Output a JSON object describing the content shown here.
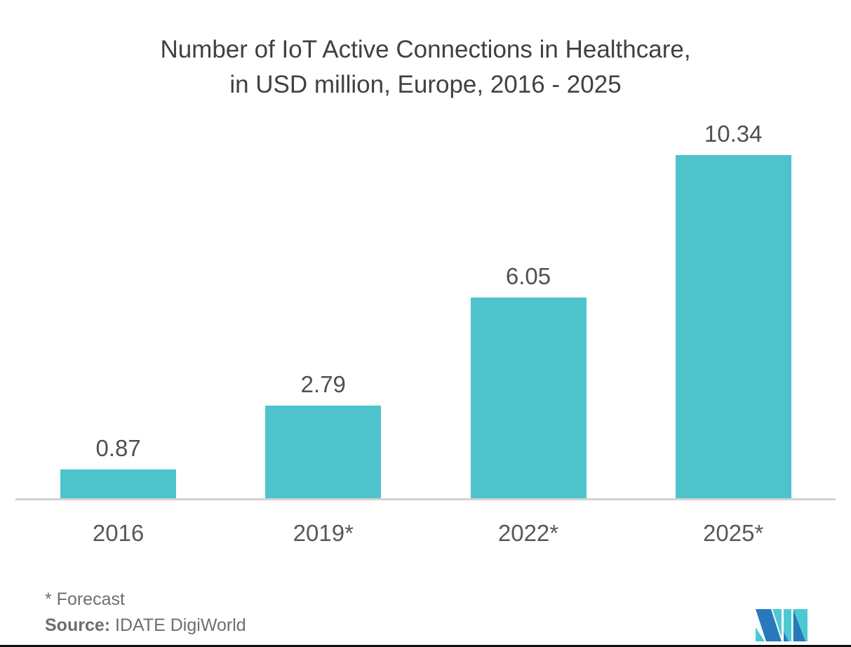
{
  "title": {
    "line1": "Number of IoT Active Connections in Healthcare,",
    "line2": "in USD million, Europe, 2016 - 2025"
  },
  "chart_data": {
    "type": "bar",
    "title": "Number of IoT Active Connections in Healthcare, in USD million, Europe, 2016 - 2025",
    "categories": [
      "2016",
      "2019*",
      "2022*",
      "2025*"
    ],
    "values": [
      0.87,
      2.79,
      6.05,
      10.34
    ],
    "value_labels": [
      "0.87",
      "2.79",
      "6.05",
      "10.34"
    ],
    "xlabel": "",
    "ylabel": "",
    "ylim": [
      0,
      10.9
    ],
    "grid": false,
    "legend": "none",
    "bar_color": "#4ec3cb",
    "axis_line_color": "#d1d3d4",
    "label_color": "#4f5052"
  },
  "footnotes": {
    "forecast": "* Forecast",
    "source_label": "Source:",
    "source_value": " IDATE DigiWorld"
  },
  "logo": {
    "name": "mordor-intelligence-logo",
    "blue": "#2879bc",
    "teal": "#4ec9d2"
  }
}
